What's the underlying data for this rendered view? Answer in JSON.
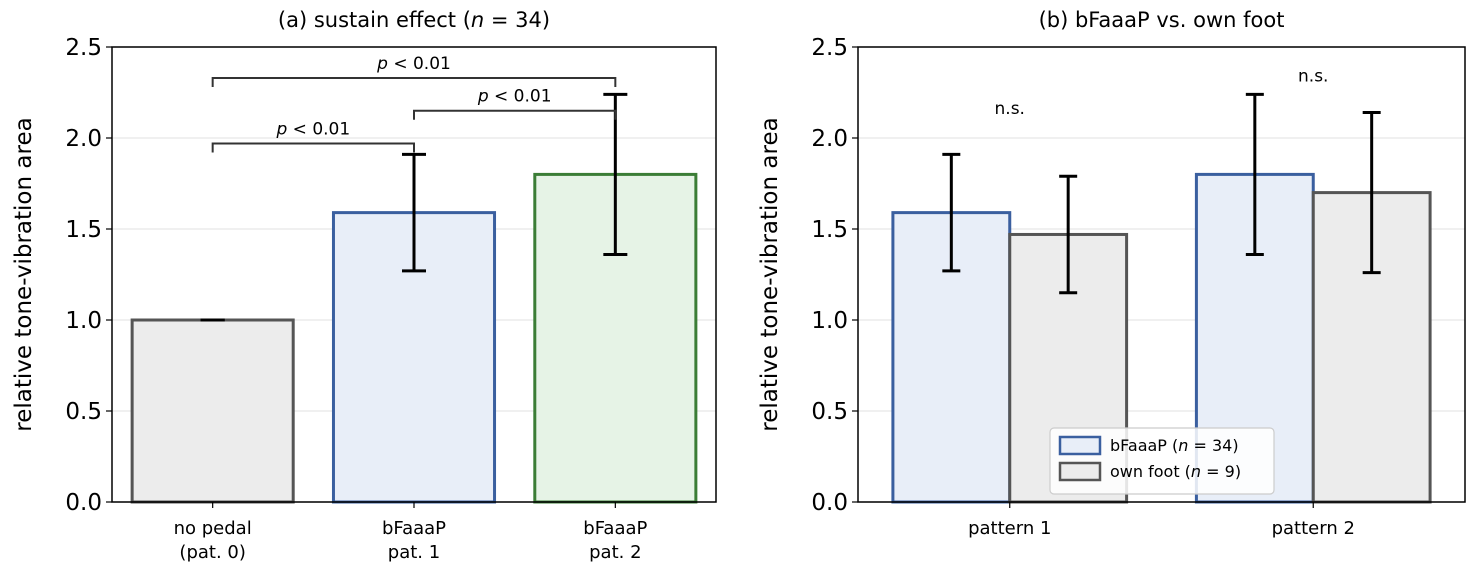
{
  "chart_data": [
    {
      "type": "bar",
      "title": "(a) sustain effect (n = 34)",
      "title_parts": [
        "(a) sustain effect (",
        "n",
        " = 34)"
      ],
      "ylabel": "relative tone-vibration area",
      "ylim": [
        0,
        2.5
      ],
      "yticks": [
        "0.0",
        "0.5",
        "1.0",
        "1.5",
        "2.0",
        "2.5"
      ],
      "grid": "horizontal",
      "categories": [
        [
          "no pedal",
          "(pat. 0)"
        ],
        [
          "bFaaaP",
          "pat. 1"
        ],
        [
          "bFaaaP",
          "pat. 2"
        ]
      ],
      "values": [
        1.0,
        1.59,
        1.8
      ],
      "errors": [
        0.0,
        0.32,
        0.44
      ],
      "bar_fill": [
        "#ececec",
        "#e8eef8",
        "#e6f3e6"
      ],
      "bar_edge": [
        "#555555",
        "#3a5f9f",
        "#3b7d36"
      ],
      "annotations": [
        {
          "from": 0,
          "to": 1,
          "p_symbol": "p",
          "label": " < 0.01",
          "y": 1.97
        },
        {
          "from": 1,
          "to": 2,
          "p_symbol": "p",
          "label": " < 0.01",
          "y": 2.15
        },
        {
          "from": 0,
          "to": 2,
          "p_symbol": "p",
          "label": " < 0.01",
          "y": 2.33
        }
      ]
    },
    {
      "type": "bar",
      "title": "(b) bFaaaP vs. own foot",
      "ylabel": "relative tone-vibration area",
      "ylim": [
        0,
        2.5
      ],
      "yticks": [
        "0.0",
        "0.5",
        "1.0",
        "1.5",
        "2.0",
        "2.5"
      ],
      "grid": "horizontal",
      "categories": [
        "pattern 1",
        "pattern 2"
      ],
      "series": [
        {
          "name": "bFaaaP (n = 34)",
          "name_parts": [
            "bFaaaP (",
            "n",
            " = 34)"
          ],
          "values": [
            1.59,
            1.8
          ],
          "errors": [
            0.32,
            0.44
          ],
          "fill": "#e8eef8",
          "edge": "#3a5f9f"
        },
        {
          "name": "own foot (n = 9)",
          "name_parts": [
            "own foot (",
            "n",
            " = 9)"
          ],
          "values": [
            1.47,
            1.7
          ],
          "errors": [
            0.32,
            0.44
          ],
          "fill": "#ececec",
          "edge": "#555555"
        }
      ],
      "group_annotations": [
        {
          "group": 0,
          "label": "n.s.",
          "y": 2.17
        },
        {
          "group": 1,
          "label": "n.s.",
          "y": 2.35
        }
      ],
      "legend_position": "lower-center"
    }
  ]
}
